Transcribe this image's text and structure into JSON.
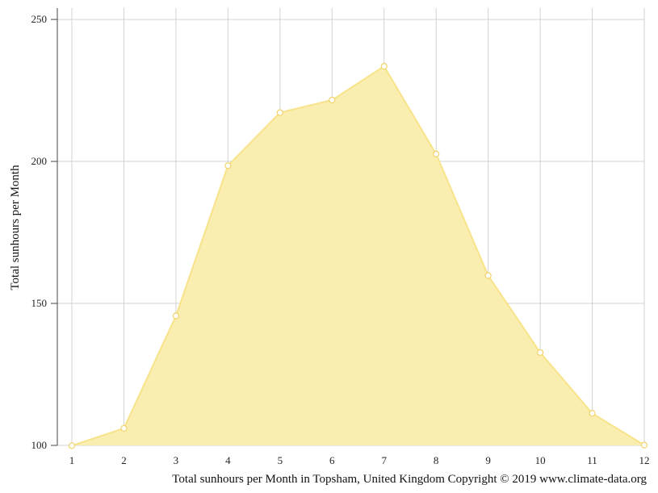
{
  "chart_data": {
    "type": "area",
    "title": "",
    "xlabel": "",
    "ylabel": "Total sunhours per Month",
    "caption": "Total sunhours per Month in Topsham, United Kingdom Copyright © 2019 www.climate-data.org",
    "x": [
      1,
      2,
      3,
      4,
      5,
      6,
      7,
      8,
      9,
      10,
      11,
      12
    ],
    "x_tick_labels": [
      "1",
      "2",
      "3",
      "4",
      "5",
      "6",
      "7",
      "8",
      "9",
      "10",
      "11",
      "12"
    ],
    "y_ticks": [
      100,
      150,
      200,
      250
    ],
    "y_tick_labels": [
      "100",
      "150",
      "200",
      "250"
    ],
    "ylim": [
      100,
      254
    ],
    "grid": true,
    "series": [
      {
        "values": [
          99.9,
          106,
          145.6,
          198.5,
          217.2,
          221.6,
          233.5,
          202.6,
          159.8,
          132.7,
          111.3,
          100.1
        ],
        "color": "#f8e38a",
        "fill": "#f9edb0",
        "marker_stroke": "#f1d36b"
      }
    ],
    "colors": {
      "grid": "#d3d3d3",
      "axis": "#444444"
    }
  }
}
